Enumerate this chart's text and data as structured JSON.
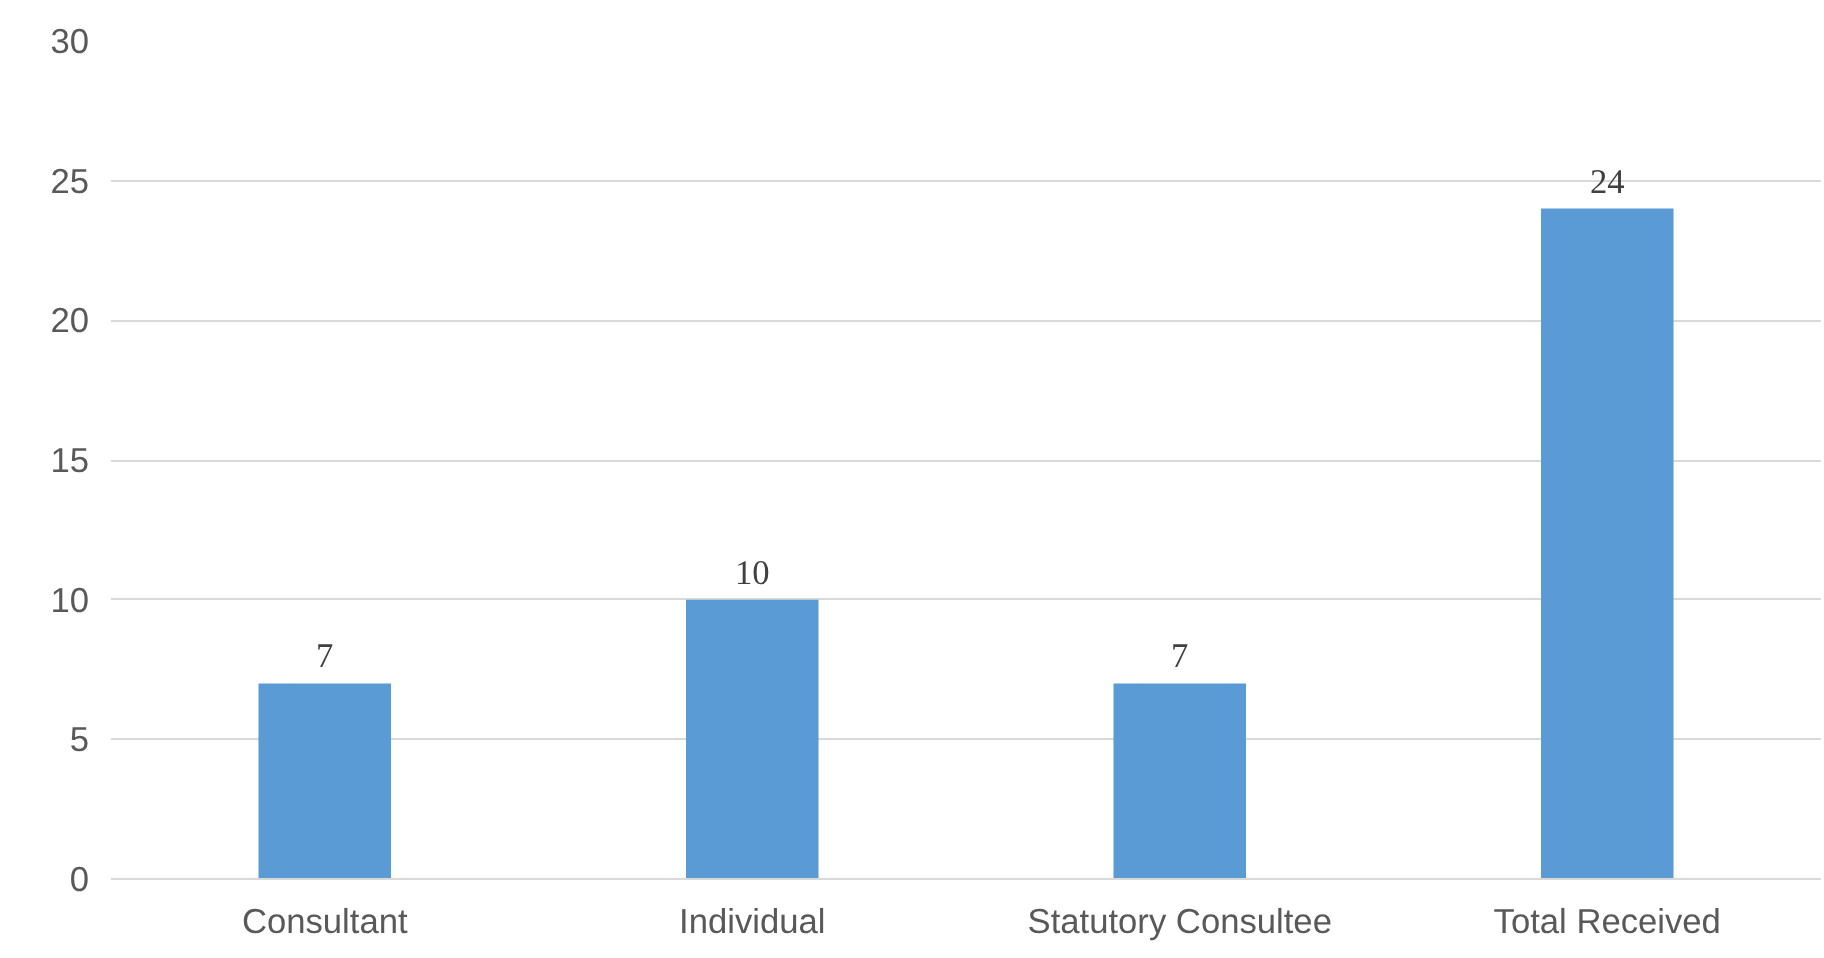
{
  "chart_data": {
    "type": "bar",
    "categories": [
      "Consultant",
      "Individual",
      "Statutory Consultee",
      "Total Received"
    ],
    "values": [
      7,
      10,
      7,
      24
    ],
    "color": "#5b9bd5",
    "ylim": [
      0,
      30
    ],
    "yticks": [
      0,
      5,
      10,
      15,
      20,
      25,
      30
    ],
    "grid": "y",
    "data_labels": true
  }
}
